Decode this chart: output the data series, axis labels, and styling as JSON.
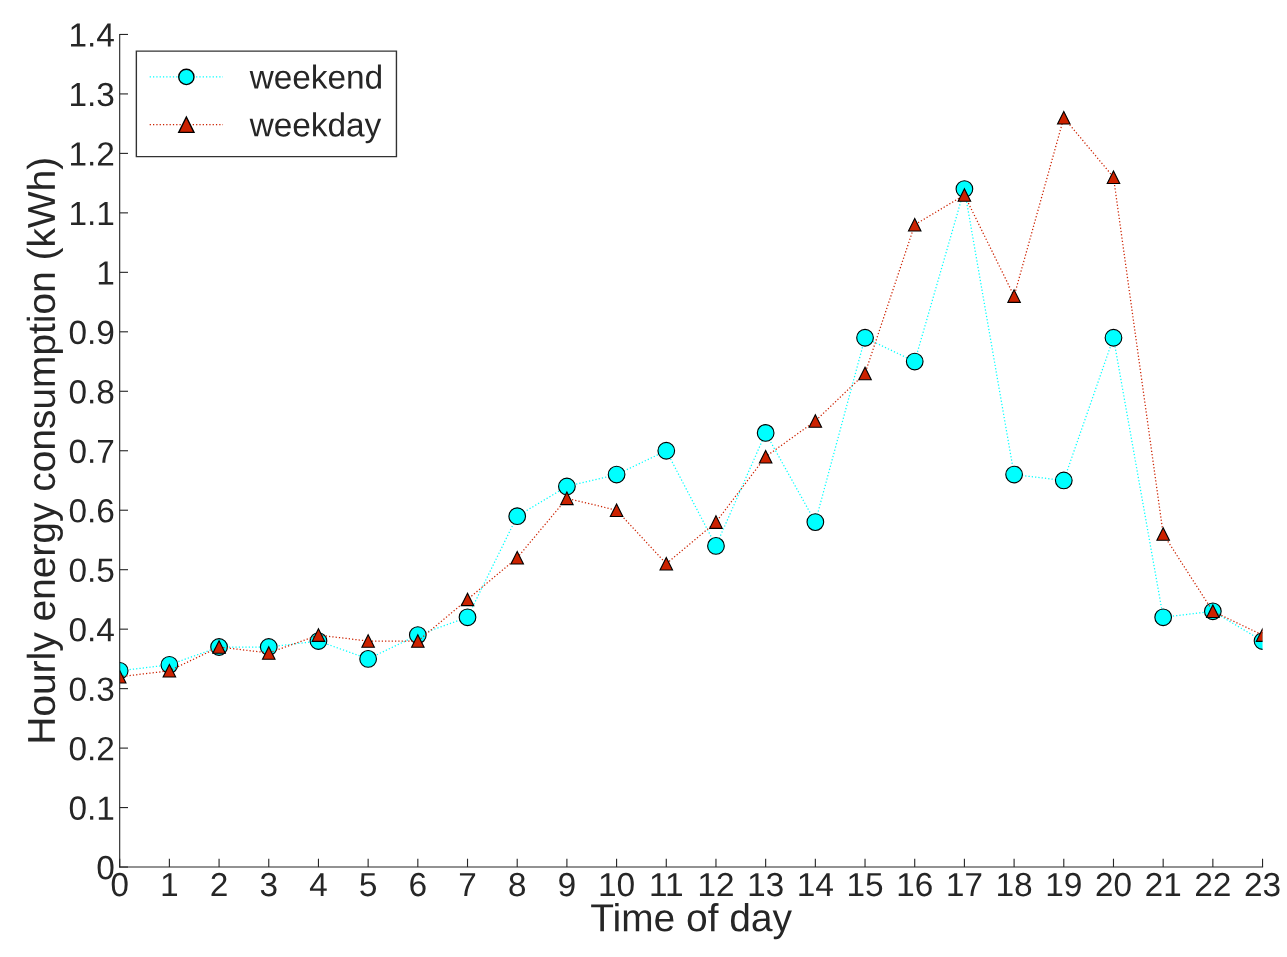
{
  "chart_data": {
    "type": "line",
    "xlabel": "Time of day",
    "ylabel": "Hourly energy consumption (kWh)",
    "x": [
      0,
      1,
      2,
      3,
      4,
      5,
      6,
      7,
      8,
      9,
      10,
      11,
      12,
      13,
      14,
      15,
      16,
      17,
      18,
      19,
      20,
      21,
      22,
      23
    ],
    "series": [
      {
        "name": "weekend",
        "color": "#00ffff",
        "marker": "circle",
        "values": [
          0.33,
          0.34,
          0.37,
          0.37,
          0.38,
          0.35,
          0.39,
          0.42,
          0.59,
          0.64,
          0.66,
          0.7,
          0.54,
          0.73,
          0.58,
          0.89,
          0.85,
          1.14,
          0.66,
          0.65,
          0.89,
          0.42,
          0.43,
          0.38
        ]
      },
      {
        "name": "weekday",
        "color": "#cc2200",
        "marker": "triangle",
        "values": [
          0.32,
          0.33,
          0.37,
          0.36,
          0.39,
          0.38,
          0.38,
          0.45,
          0.52,
          0.62,
          0.6,
          0.51,
          0.58,
          0.69,
          0.75,
          0.83,
          1.08,
          1.13,
          0.96,
          1.26,
          1.16,
          0.56,
          0.43,
          0.39
        ]
      }
    ],
    "line_style": "dotted",
    "xlim": [
      0,
      23
    ],
    "xticks": [
      0,
      1,
      2,
      3,
      4,
      5,
      6,
      7,
      8,
      9,
      10,
      11,
      12,
      13,
      14,
      15,
      16,
      17,
      18,
      19,
      20,
      21,
      22,
      23
    ],
    "ylim": [
      0,
      1.4
    ],
    "yticks": [
      0,
      0.1,
      0.2,
      0.3,
      0.4,
      0.5,
      0.6,
      0.7,
      0.8,
      0.9,
      1,
      1.1,
      1.2,
      1.3,
      1.4
    ],
    "grid": false,
    "legend": "top left"
  }
}
